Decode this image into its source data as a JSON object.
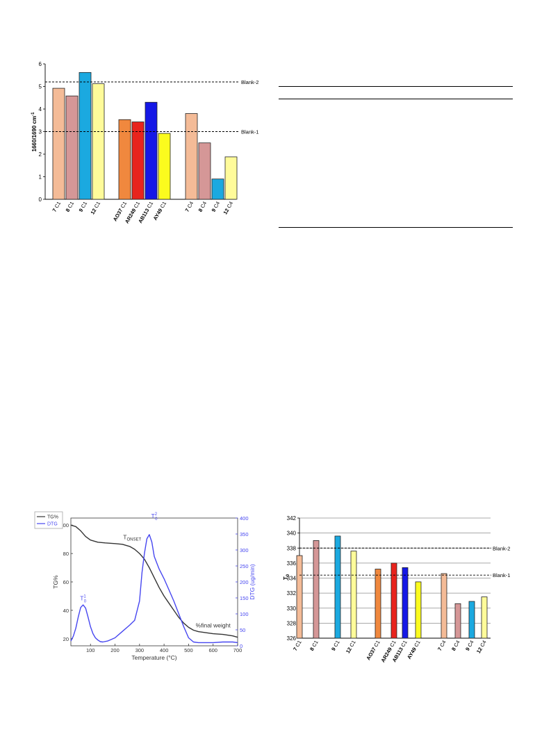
{
  "colors": {
    "peach": "#f4bb97",
    "rose": "#d59797",
    "sky": "#1ba9e0",
    "paleyellow": "#fffb9a",
    "orange": "#f0883e",
    "red": "#e8241d",
    "blue": "#1518e6",
    "yellow": "#fbfb1e",
    "tg_line": "#333333",
    "dtg_line": "#4646f0"
  },
  "chart_data": [
    {
      "id": "ratio-chart",
      "type": "bar",
      "title": "",
      "ylabel": "1660/1690 cm",
      "ylabel_sup": "-1",
      "ylim": [
        0,
        6
      ],
      "yticks": [
        0,
        1,
        2,
        3,
        4,
        5,
        6
      ],
      "grid": false,
      "categories": [
        "7 C1",
        "8 C1",
        "9 C1",
        "12 C1",
        "AO37 C1",
        "AR249 C1",
        "AB113 C1",
        "AY49 C1",
        "7 C4",
        "8 C4",
        "9 C4",
        "12 C4"
      ],
      "category_main": [
        "7",
        "8",
        "9",
        "12",
        "AO37",
        "AR249",
        "AB113",
        "AY49",
        "7",
        "8",
        "9",
        "12"
      ],
      "category_sub": [
        "C1",
        "C1",
        "C1",
        "C1",
        "C1",
        "C1",
        "C1",
        "C1",
        "C4",
        "C4",
        "C4",
        "C4"
      ],
      "values": [
        4.92,
        4.58,
        5.62,
        5.12,
        3.53,
        3.43,
        4.3,
        2.92,
        3.8,
        2.5,
        0.9,
        1.88
      ],
      "bar_colors": [
        "peach",
        "rose",
        "sky",
        "paleyellow",
        "orange",
        "red",
        "blue",
        "yellow",
        "peach",
        "rose",
        "sky",
        "paleyellow"
      ],
      "reference_lines": [
        {
          "label": "Blank-2",
          "value": 5.2
        },
        {
          "label": "Blank-1",
          "value": 3.0
        }
      ]
    },
    {
      "id": "tg-dtg-chart",
      "type": "line",
      "title": "",
      "xlabel": "Temperature (°C)",
      "ylabel": "TG%",
      "y2label": "DTG (ug/min)",
      "xlim": [
        20,
        700
      ],
      "xticks": [
        100,
        200,
        300,
        400,
        500,
        600,
        700
      ],
      "ylim": [
        15,
        105
      ],
      "yticks": [
        20,
        40,
        60,
        80,
        100
      ],
      "y2lim": [
        0,
        400
      ],
      "y2ticks": [
        0,
        50,
        100,
        150,
        200,
        250,
        300,
        350,
        400
      ],
      "legend": {
        "position": "top-left",
        "entries": [
          "TG%",
          "DTG"
        ]
      },
      "series": [
        {
          "name": "TG%",
          "axis": "left",
          "x": [
            20,
            40,
            60,
            80,
            100,
            130,
            160,
            200,
            230,
            260,
            280,
            300,
            320,
            340,
            360,
            380,
            400,
            420,
            440,
            460,
            480,
            500,
            520,
            540,
            560,
            580,
            600,
            640,
            680,
            700
          ],
          "y": [
            100,
            99,
            96,
            92,
            89.5,
            88,
            87.5,
            87,
            86.5,
            85,
            83,
            80,
            76,
            70,
            63,
            56,
            50,
            45,
            40,
            35,
            31,
            28,
            26,
            25,
            24.5,
            24,
            23.5,
            23,
            22,
            21
          ]
        },
        {
          "name": "DTG",
          "axis": "right",
          "x": [
            20,
            30,
            40,
            50,
            60,
            70,
            80,
            90,
            100,
            110,
            120,
            130,
            140,
            150,
            170,
            200,
            230,
            260,
            280,
            300,
            310,
            320,
            330,
            340,
            350,
            360,
            370,
            380,
            400,
            420,
            440,
            460,
            480,
            500,
            520,
            540,
            560,
            580,
            600,
            640,
            680,
            700
          ],
          "y": [
            15,
            30,
            55,
            90,
            120,
            128,
            118,
            90,
            60,
            38,
            25,
            18,
            13,
            12,
            15,
            25,
            45,
            65,
            80,
            140,
            230,
            290,
            335,
            348,
            325,
            280,
            260,
            240,
            210,
            175,
            140,
            100,
            60,
            25,
            12,
            10,
            10,
            10,
            10,
            12,
            12,
            10
          ]
        }
      ],
      "annotations": [
        {
          "text": "T",
          "sub": "ONSET",
          "sup": "",
          "x": 270,
          "y": 90
        },
        {
          "text": "T",
          "sub": "0",
          "sup": "2",
          "x": 360,
          "y": 105
        },
        {
          "text": "T",
          "sub": "0",
          "sup": "1",
          "x": 70,
          "y": 47
        },
        {
          "text": "%final weight",
          "sub": "",
          "sup": "",
          "x": 600,
          "y": 28
        }
      ]
    },
    {
      "id": "t0-chart",
      "type": "bar",
      "title": "",
      "ylabel": "T",
      "ylabel_sub": "0",
      "ylim": [
        326,
        342
      ],
      "yticks": [
        326,
        328,
        330,
        332,
        334,
        336,
        338,
        340,
        342
      ],
      "grid": true,
      "categories": [
        "7 C1",
        "8 C1",
        "9 C1",
        "12 C1",
        "AO37 C1",
        "AR249 C1",
        "AB113 C1",
        "AY49 C1",
        "7 C4",
        "8 C4",
        "9 C4",
        "12 C4"
      ],
      "category_main": [
        "7",
        "8",
        "9",
        "12",
        "AO37",
        "AR249",
        "AB113",
        "AY49",
        "7",
        "8",
        "9",
        "12"
      ],
      "category_sub": [
        "C1",
        "C1",
        "C1",
        "C1",
        "C1",
        "C1",
        "C1",
        "C1",
        "C4",
        "C4",
        "C4",
        "C4"
      ],
      "values": [
        337.0,
        339.0,
        339.6,
        337.6,
        335.2,
        336.0,
        335.4,
        333.5,
        334.6,
        330.6,
        330.9,
        331.5
      ],
      "bar_colors": [
        "peach",
        "rose",
        "sky",
        "paleyellow",
        "orange",
        "red",
        "blue",
        "yellow",
        "peach",
        "rose",
        "sky",
        "paleyellow"
      ],
      "reference_lines": [
        {
          "label": "Blank-2",
          "value": 338.0
        },
        {
          "label": "Blank-1",
          "value": 334.4
        }
      ]
    }
  ]
}
